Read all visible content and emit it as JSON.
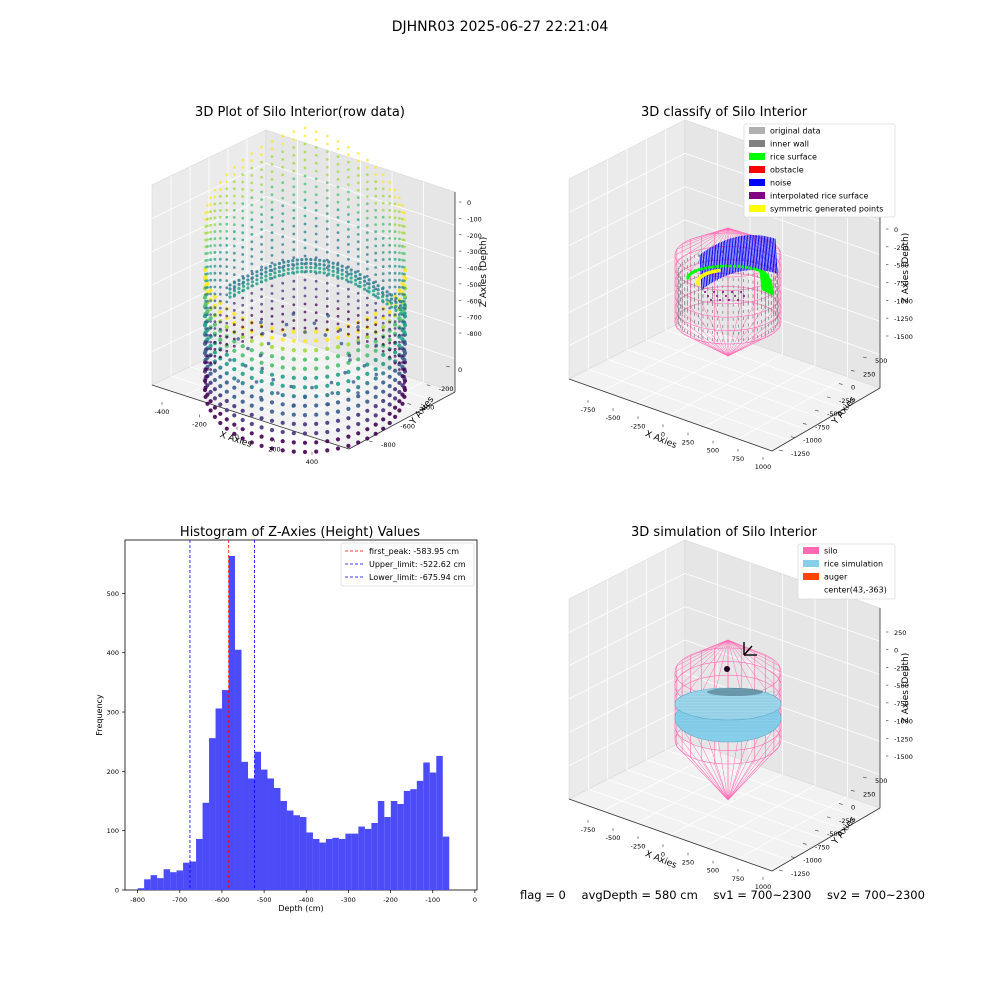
{
  "figure_title": "DJHNR03 2025-06-27 22:21:04",
  "colors": {
    "hist_bar": "#4b4bf8",
    "peak_line": "#ff0000",
    "limit_line": "#0000ff",
    "legend_original": "#b0b0b0",
    "legend_inner_wall": "#808080",
    "legend_rice_surface": "#00ff00",
    "legend_obstacle": "#ff0000",
    "legend_noise": "#0000ff",
    "legend_interpolated": "#800080",
    "legend_symmetric": "#ffff00",
    "silo": "#ff69b4",
    "rice_simulation": "#87ceeb",
    "auger": "#ff4500"
  },
  "chart_data": [
    {
      "type": "scatter",
      "title": "3D Plot of Silo Interior(row data)",
      "xlabel": "X Axies",
      "ylabel": "Y Axies",
      "zlabel": "Z Axies (Depth)",
      "x_ticks": [
        "-400",
        "-200",
        "0",
        "200",
        "400"
      ],
      "y_ticks": [
        "0",
        "-200",
        "-400",
        "-600",
        "-800"
      ],
      "z_ticks": [
        "0",
        "-100",
        "-200",
        "-300",
        "-400",
        "-500",
        "-600",
        "-700",
        "-800"
      ],
      "colormap": "viridis"
    },
    {
      "type": "scatter",
      "title": "3D classify of Silo Interior",
      "xlabel": "X Axies",
      "ylabel": "Y Axies",
      "zlabel": "Z Axies (Depth)",
      "x_ticks": [
        "-750",
        "-500",
        "-250",
        "0",
        "250",
        "500",
        "750",
        "1000"
      ],
      "y_ticks": [
        "500",
        "250",
        "0",
        "-250",
        "-500",
        "-750",
        "-1000",
        "-1250"
      ],
      "z_ticks": [
        "0",
        "-250",
        "-500",
        "-750",
        "-1000",
        "-1250",
        "-1500"
      ],
      "legend": [
        "original data",
        "inner wall",
        "rice surface",
        "obstacle",
        "noise",
        "interpolated rice surface",
        "symmetric generated points"
      ],
      "legend_placement": "top-right"
    },
    {
      "type": "bar",
      "title": "Histogram of Z-Axies (Height) Values",
      "xlabel": "Depth (cm)",
      "ylabel": "Frequency",
      "xlim": [
        -830,
        5
      ],
      "ylim": [
        0,
        590
      ],
      "x_ticks": [
        -800,
        -700,
        -600,
        -500,
        -400,
        -300,
        -200,
        -100,
        0
      ],
      "y_ticks": [
        0,
        100,
        200,
        300,
        400,
        500
      ],
      "bin_start": -800,
      "bin_width": 15.4,
      "values": [
        3,
        18,
        25,
        20,
        35,
        30,
        33,
        46,
        48,
        86,
        147,
        256,
        306,
        337,
        563,
        405,
        216,
        188,
        233,
        203,
        188,
        172,
        150,
        134,
        126,
        123,
        97,
        86,
        80,
        86,
        88,
        86,
        95,
        95,
        107,
        103,
        113,
        150,
        123,
        150,
        145,
        167,
        170,
        184,
        215,
        198,
        226,
        90
      ],
      "vlines": [
        {
          "label": "first_peak: -583.95 cm",
          "x": -583.95,
          "color": "#ff0000"
        },
        {
          "label": "Upper_limit: -522.62 cm",
          "x": -522.62,
          "color": "#0000ff"
        },
        {
          "label": "Lower_limit: -675.94 cm",
          "x": -675.94,
          "color": "#0000ff"
        }
      ],
      "legend_placement": "top-right",
      "grid": false
    },
    {
      "type": "scatter",
      "title": "3D simulation of Silo Interior",
      "xlabel": "X Axies",
      "ylabel": "Y Axies",
      "zlabel": "Z Axies (Depth)",
      "x_ticks": [
        "-750",
        "-500",
        "-250",
        "0",
        "250",
        "500",
        "750",
        "1000"
      ],
      "y_ticks": [
        "500",
        "250",
        "0",
        "-250",
        "-500",
        "-750",
        "-1000",
        "-1250"
      ],
      "z_ticks": [
        "250",
        "0",
        "-250",
        "-500",
        "-750",
        "-1000",
        "-1250",
        "-1500"
      ],
      "legend": [
        "silo",
        "rice simulation",
        "auger",
        "center(43,-363)"
      ],
      "legend_placement": "top-right"
    }
  ],
  "status": {
    "flag": "flag = 0",
    "avg_depth": "avgDepth = 580 cm",
    "sv1": "sv1 = 700~2300",
    "sv2": "sv2 = 700~2300"
  }
}
